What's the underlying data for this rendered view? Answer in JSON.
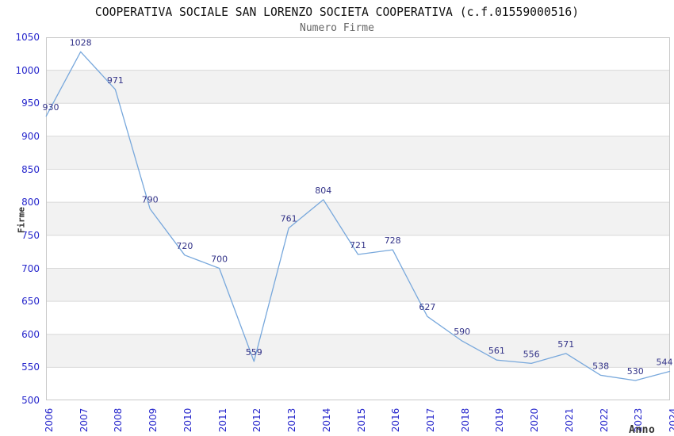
{
  "chart_data": {
    "type": "line",
    "title": "COOPERATIVA SOCIALE SAN LORENZO SOCIETA COOPERATIVA (c.f.01559000516)",
    "subtitle": "Numero Firme",
    "xlabel": "Anno",
    "ylabel": "Firme",
    "x": [
      2006,
      2007,
      2008,
      2009,
      2010,
      2011,
      2012,
      2013,
      2014,
      2015,
      2016,
      2017,
      2018,
      2019,
      2020,
      2021,
      2022,
      2023,
      2024
    ],
    "series": [
      {
        "name": "Numero Firme",
        "values": [
          930,
          1028,
          971,
          790,
          720,
          700,
          559,
          761,
          804,
          721,
          728,
          627,
          590,
          561,
          556,
          571,
          538,
          530,
          544
        ]
      }
    ],
    "ylim": [
      500,
      1050
    ],
    "ytick_step": 50,
    "grid": true,
    "legend_position": "none",
    "point_labels_visible": true,
    "colors": {
      "line": "#78a8dc",
      "point_labels": "#333388",
      "axis_ticks": "#2727cc",
      "axis_titles": "#333333",
      "band_alt": "#f2f2f2",
      "gridline": "#d9d9d9",
      "plot_border": "#c9c9c9",
      "title": "#111111",
      "subtitle": "#666666",
      "background": "#ffffff"
    }
  }
}
